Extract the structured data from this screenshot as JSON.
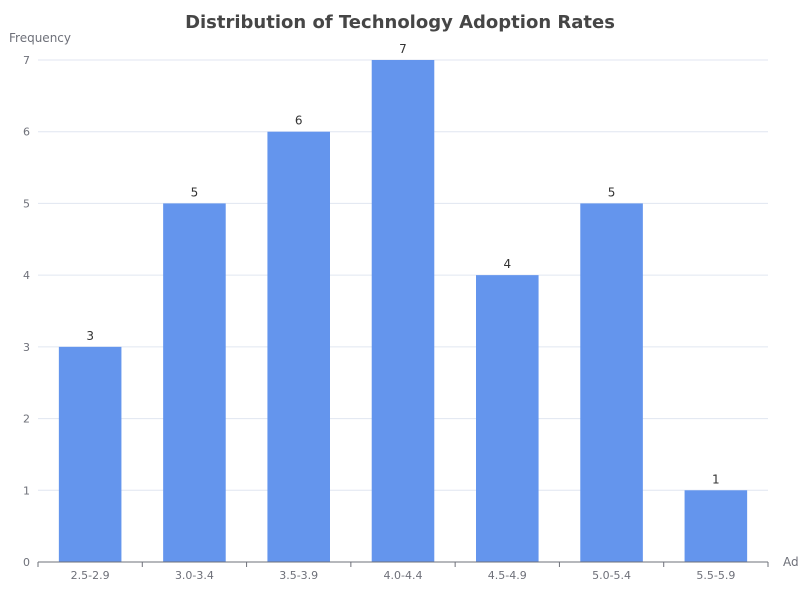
{
  "chart_data": {
    "type": "bar",
    "title": "Distribution of Technology Adoption Rates",
    "xlabel": "Ad",
    "ylabel": "Frequency",
    "categories": [
      "2.5-2.9",
      "3.0-3.4",
      "3.5-3.9",
      "4.0-4.4",
      "4.5-4.9",
      "5.0-5.4",
      "5.5-5.9"
    ],
    "values": [
      3,
      5,
      6,
      7,
      4,
      5,
      1
    ],
    "ylim": [
      0,
      7
    ],
    "yticks": [
      0,
      1,
      2,
      3,
      4,
      5,
      6,
      7
    ],
    "grid": true,
    "bar_color": "#6495ed",
    "data_labels": true
  }
}
